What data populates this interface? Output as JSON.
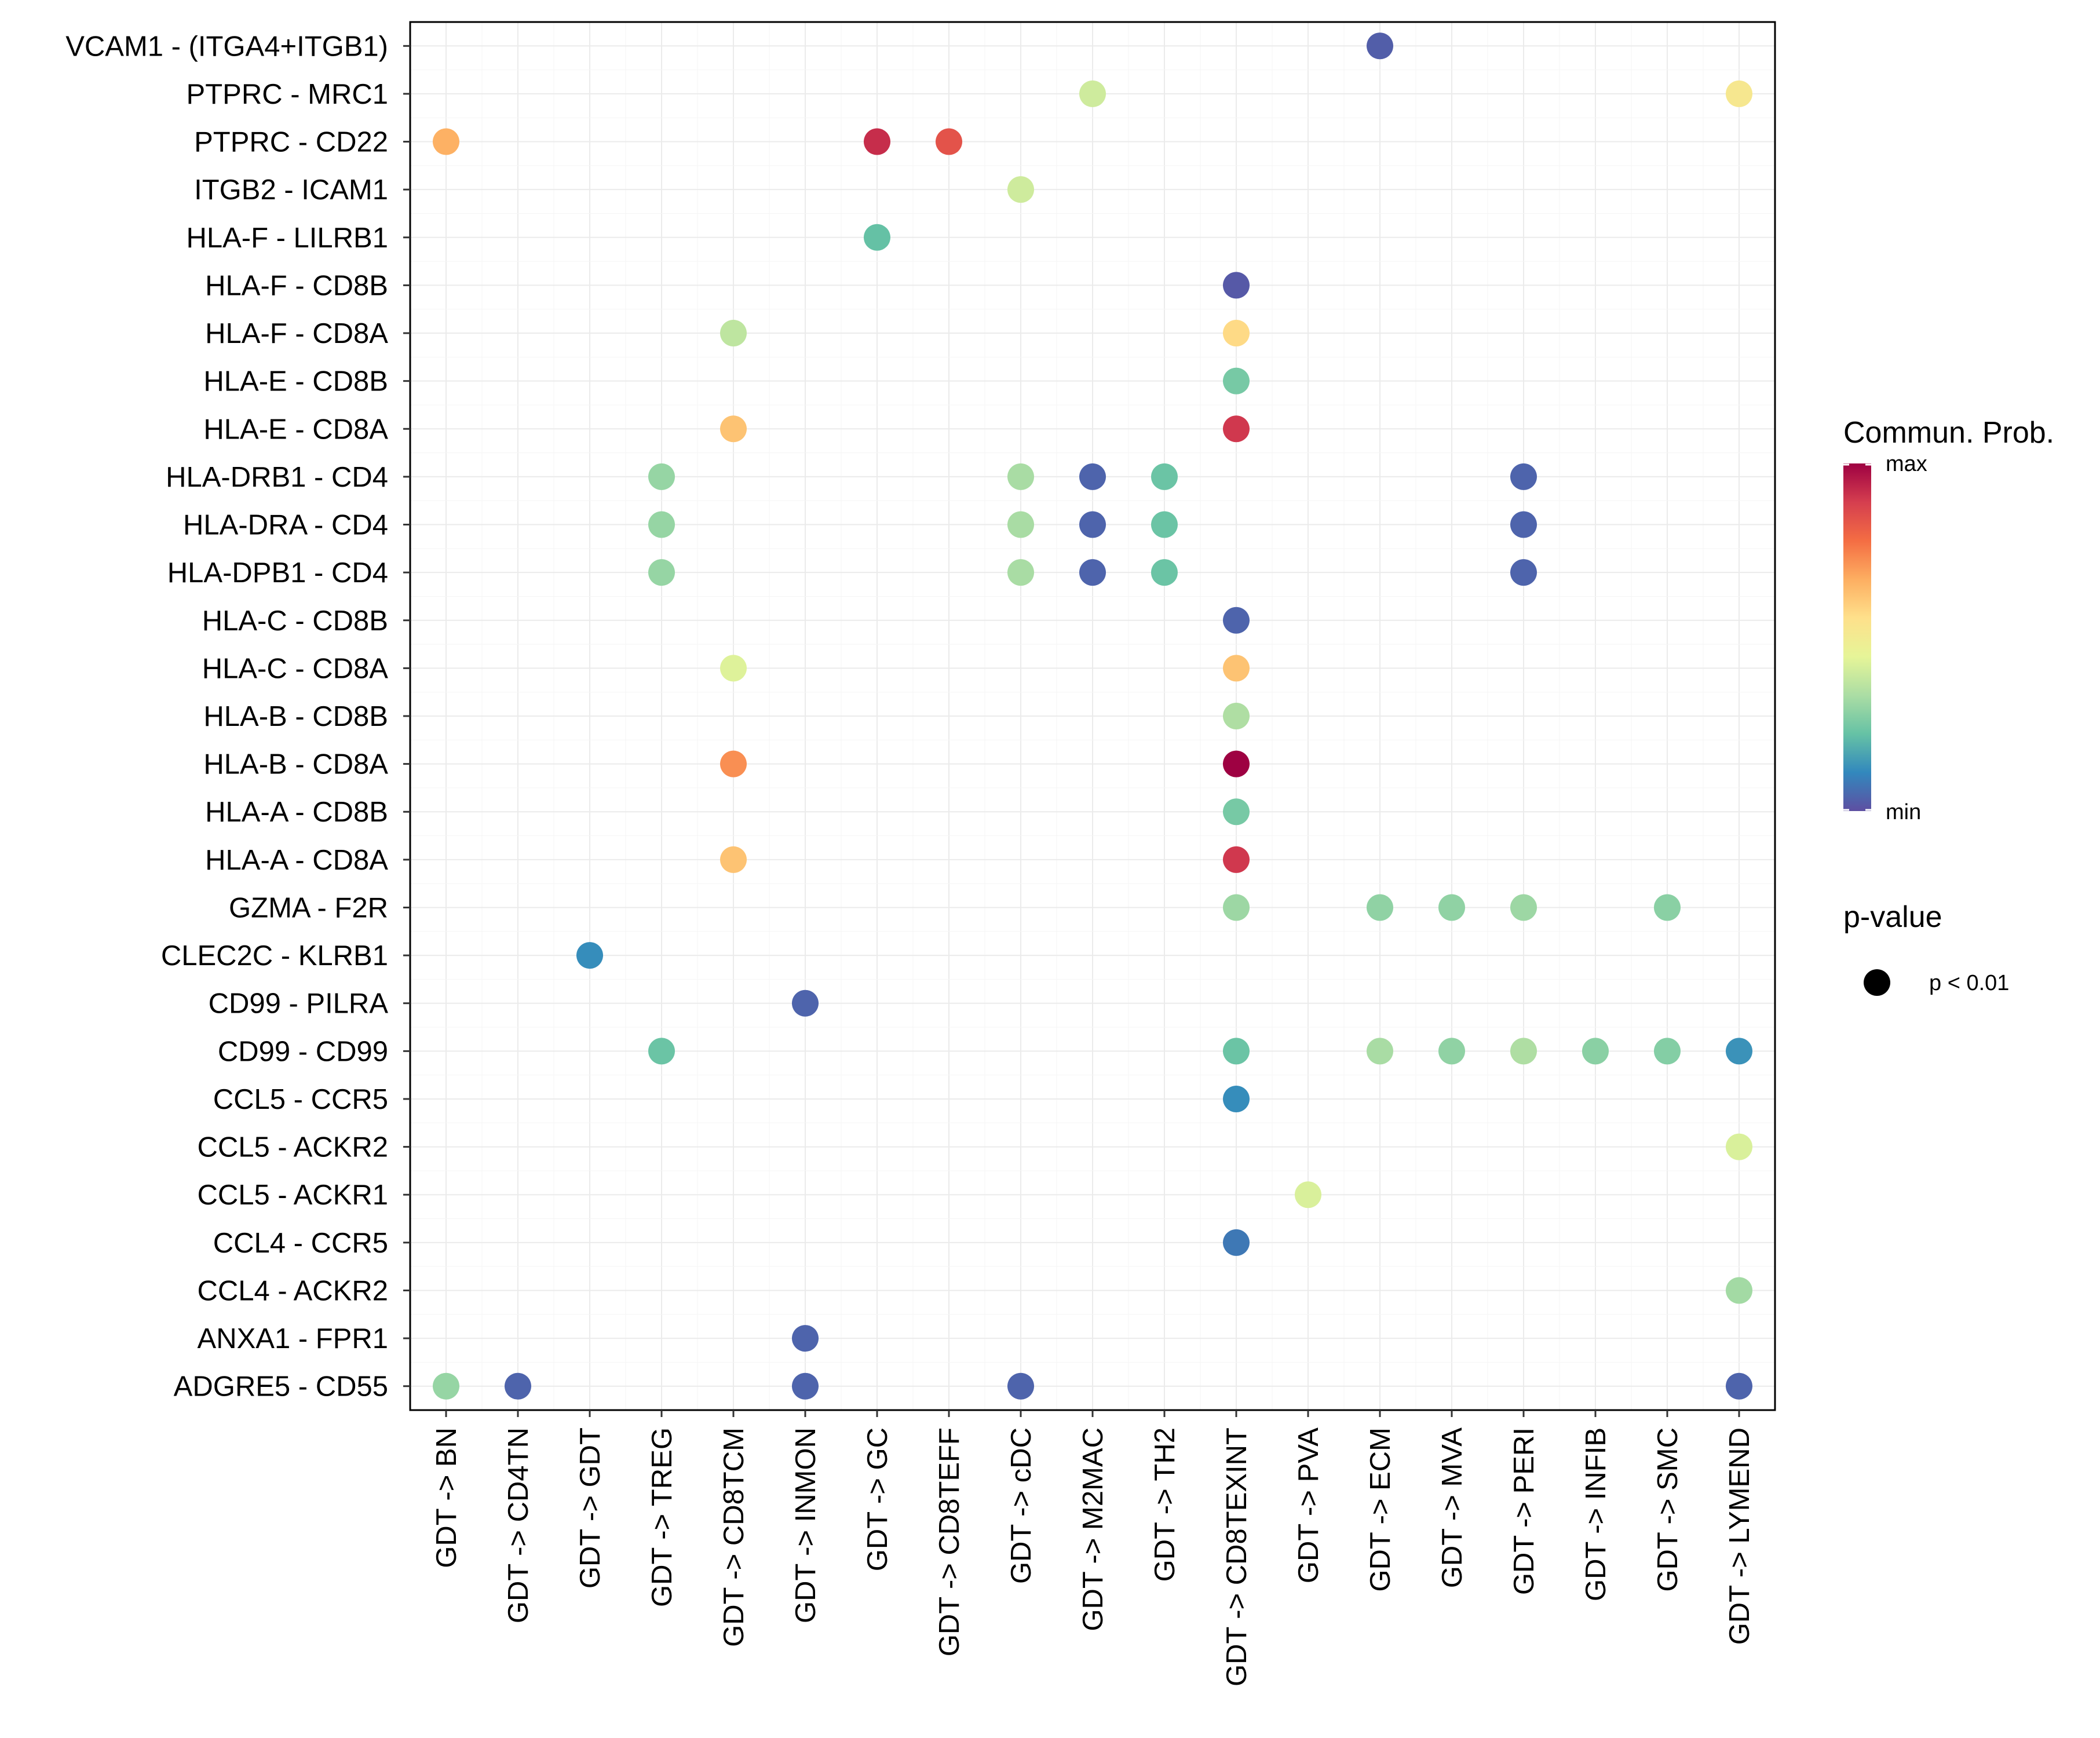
{
  "chart_data": {
    "type": "dot",
    "title": "",
    "xlabel": "",
    "ylabel": "",
    "grid": true,
    "categories_x": [
      "GDT -> BN",
      "GDT -> CD4TN",
      "GDT -> GDT",
      "GDT -> TREG",
      "GDT -> CD8TCM",
      "GDT -> INMON",
      "GDT -> GC",
      "GDT -> CD8TEFF",
      "GDT -> cDC",
      "GDT -> M2MAC",
      "GDT -> TH2",
      "GDT -> CD8TEXINT",
      "GDT -> PVA",
      "GDT -> ECM",
      "GDT -> MVA",
      "GDT -> PERI",
      "GDT -> INFIB",
      "GDT -> SMC",
      "GDT -> LYMEND"
    ],
    "categories_y": [
      "VCAM1 - (ITGA4+ITGB1)",
      "PTPRC - MRC1",
      "PTPRC - CD22",
      "ITGB2 - ICAM1",
      "HLA-F - LILRB1",
      "HLA-F - CD8B",
      "HLA-F - CD8A",
      "HLA-E - CD8B",
      "HLA-E - CD8A",
      "HLA-DRB1 - CD4",
      "HLA-DRA - CD4",
      "HLA-DPB1 - CD4",
      "HLA-C - CD8B",
      "HLA-C - CD8A",
      "HLA-B - CD8B",
      "HLA-B - CD8A",
      "HLA-A - CD8B",
      "HLA-A - CD8A",
      "GZMA - F2R",
      "CLEC2C - KLRB1",
      "CD99 - PILRA",
      "CD99 - CD99",
      "CCL5 - CCR5",
      "CCL5 - ACKR2",
      "CCL5 - ACKR1",
      "CCL4 - CCR5",
      "CCL4 - ACKR2",
      "ANXA1 - FPR1",
      "ADGRE5 - CD55"
    ],
    "points": [
      {
        "x": "GDT -> ECM",
        "y": "VCAM1 - (ITGA4+ITGB1)",
        "prob": 0.03
      },
      {
        "x": "GDT -> M2MAC",
        "y": "PTPRC - MRC1",
        "prob": 0.4
      },
      {
        "x": "GDT -> LYMEND",
        "y": "PTPRC - MRC1",
        "prob": 0.52
      },
      {
        "x": "GDT -> BN",
        "y": "PTPRC - CD22",
        "prob": 0.66
      },
      {
        "x": "GDT -> GC",
        "y": "PTPRC - CD22",
        "prob": 0.92
      },
      {
        "x": "GDT -> CD8TEFF",
        "y": "PTPRC - CD22",
        "prob": 0.84
      },
      {
        "x": "GDT -> cDC",
        "y": "ITGB2 - ICAM1",
        "prob": 0.4
      },
      {
        "x": "GDT -> GC",
        "y": "HLA-F - LILRB1",
        "prob": 0.22
      },
      {
        "x": "GDT -> CD8TEXINT",
        "y": "HLA-F - CD8B",
        "prob": 0.02
      },
      {
        "x": "GDT -> CD8TCM",
        "y": "HLA-F - CD8A",
        "prob": 0.37
      },
      {
        "x": "GDT -> CD8TEXINT",
        "y": "HLA-F - CD8A",
        "prob": 0.57
      },
      {
        "x": "GDT -> CD8TEXINT",
        "y": "HLA-E - CD8B",
        "prob": 0.25
      },
      {
        "x": "GDT -> CD8TCM",
        "y": "HLA-E - CD8A",
        "prob": 0.62
      },
      {
        "x": "GDT -> CD8TEXINT",
        "y": "HLA-E - CD8A",
        "prob": 0.9
      },
      {
        "x": "GDT -> TREG",
        "y": "HLA-DRB1 - CD4",
        "prob": 0.3
      },
      {
        "x": "GDT -> cDC",
        "y": "HLA-DRB1 - CD4",
        "prob": 0.33
      },
      {
        "x": "GDT -> M2MAC",
        "y": "HLA-DRB1 - CD4",
        "prob": 0.04
      },
      {
        "x": "GDT -> TH2",
        "y": "HLA-DRB1 - CD4",
        "prob": 0.23
      },
      {
        "x": "GDT -> PERI",
        "y": "HLA-DRB1 - CD4",
        "prob": 0.04
      },
      {
        "x": "GDT -> TREG",
        "y": "HLA-DRA - CD4",
        "prob": 0.3
      },
      {
        "x": "GDT -> cDC",
        "y": "HLA-DRA - CD4",
        "prob": 0.33
      },
      {
        "x": "GDT -> M2MAC",
        "y": "HLA-DRA - CD4",
        "prob": 0.04
      },
      {
        "x": "GDT -> TH2",
        "y": "HLA-DRA - CD4",
        "prob": 0.23
      },
      {
        "x": "GDT -> PERI",
        "y": "HLA-DRA - CD4",
        "prob": 0.04
      },
      {
        "x": "GDT -> TREG",
        "y": "HLA-DPB1 - CD4",
        "prob": 0.3
      },
      {
        "x": "GDT -> cDC",
        "y": "HLA-DPB1 - CD4",
        "prob": 0.33
      },
      {
        "x": "GDT -> M2MAC",
        "y": "HLA-DPB1 - CD4",
        "prob": 0.04
      },
      {
        "x": "GDT -> TH2",
        "y": "HLA-DPB1 - CD4",
        "prob": 0.23
      },
      {
        "x": "GDT -> PERI",
        "y": "HLA-DPB1 - CD4",
        "prob": 0.04
      },
      {
        "x": "GDT -> CD8TEXINT",
        "y": "HLA-C - CD8B",
        "prob": 0.04
      },
      {
        "x": "GDT -> CD8TCM",
        "y": "HLA-C - CD8A",
        "prob": 0.43
      },
      {
        "x": "GDT -> CD8TEXINT",
        "y": "HLA-C - CD8A",
        "prob": 0.62
      },
      {
        "x": "GDT -> CD8TEXINT",
        "y": "HLA-B - CD8B",
        "prob": 0.34
      },
      {
        "x": "GDT -> CD8TCM",
        "y": "HLA-B - CD8A",
        "prob": 0.72
      },
      {
        "x": "GDT -> CD8TEXINT",
        "y": "HLA-B - CD8A",
        "prob": 1.0
      },
      {
        "x": "GDT -> CD8TEXINT",
        "y": "HLA-A - CD8B",
        "prob": 0.25
      },
      {
        "x": "GDT -> CD8TCM",
        "y": "HLA-A - CD8A",
        "prob": 0.62
      },
      {
        "x": "GDT -> CD8TEXINT",
        "y": "HLA-A - CD8A",
        "prob": 0.9
      },
      {
        "x": "GDT -> CD8TEXINT",
        "y": "GZMA - F2R",
        "prob": 0.31
      },
      {
        "x": "GDT -> ECM",
        "y": "GZMA - F2R",
        "prob": 0.29
      },
      {
        "x": "GDT -> MVA",
        "y": "GZMA - F2R",
        "prob": 0.29
      },
      {
        "x": "GDT -> PERI",
        "y": "GZMA - F2R",
        "prob": 0.31
      },
      {
        "x": "GDT -> SMC",
        "y": "GZMA - F2R",
        "prob": 0.28
      },
      {
        "x": "GDT -> GDT",
        "y": "CLEC2C - KLRB1",
        "prob": 0.12
      },
      {
        "x": "GDT -> INMON",
        "y": "CD99 - PILRA",
        "prob": 0.04
      },
      {
        "x": "GDT -> TREG",
        "y": "CD99 - CD99",
        "prob": 0.23
      },
      {
        "x": "GDT -> CD8TEXINT",
        "y": "CD99 - CD99",
        "prob": 0.23
      },
      {
        "x": "GDT -> ECM",
        "y": "CD99 - CD99",
        "prob": 0.33
      },
      {
        "x": "GDT -> MVA",
        "y": "CD99 - CD99",
        "prob": 0.29
      },
      {
        "x": "GDT -> PERI",
        "y": "CD99 - CD99",
        "prob": 0.34
      },
      {
        "x": "GDT -> INFIB",
        "y": "CD99 - CD99",
        "prob": 0.28
      },
      {
        "x": "GDT -> SMC",
        "y": "CD99 - CD99",
        "prob": 0.27
      },
      {
        "x": "GDT -> LYMEND",
        "y": "CD99 - CD99",
        "prob": 0.13
      },
      {
        "x": "GDT -> CD8TEXINT",
        "y": "CCL5 - CCR5",
        "prob": 0.12
      },
      {
        "x": "GDT -> LYMEND",
        "y": "CCL5 - ACKR2",
        "prob": 0.42
      },
      {
        "x": "GDT -> PVA",
        "y": "CCL5 - ACKR1",
        "prob": 0.42
      },
      {
        "x": "GDT -> CD8TEXINT",
        "y": "CCL4 - CCR5",
        "prob": 0.08
      },
      {
        "x": "GDT -> LYMEND",
        "y": "CCL4 - ACKR2",
        "prob": 0.32
      },
      {
        "x": "GDT -> INMON",
        "y": "ANXA1 - FPR1",
        "prob": 0.04
      },
      {
        "x": "GDT -> BN",
        "y": "ADGRE5 - CD55",
        "prob": 0.3
      },
      {
        "x": "GDT -> CD4TN",
        "y": "ADGRE5 - CD55",
        "prob": 0.04
      },
      {
        "x": "GDT -> INMON",
        "y": "ADGRE5 - CD55",
        "prob": 0.04
      },
      {
        "x": "GDT -> cDC",
        "y": "ADGRE5 - CD55",
        "prob": 0.04
      },
      {
        "x": "GDT -> LYMEND",
        "y": "ADGRE5 - CD55",
        "prob": 0.04
      }
    ],
    "colorscale": [
      "#5e4fa2",
      "#3288bd",
      "#66c2a5",
      "#abdda4",
      "#e6f598",
      "#fee08b",
      "#fdae61",
      "#f46d43",
      "#d53e4f",
      "#9e0142"
    ],
    "legend": {
      "color_title": "Commun. Prob.",
      "color_max_label": "max",
      "color_min_label": "min",
      "size_title": "p-value",
      "size_label": "p < 0.01",
      "placement": "right"
    }
  }
}
